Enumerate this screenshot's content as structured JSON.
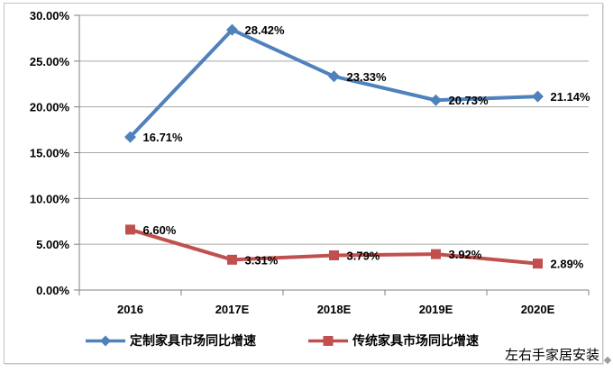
{
  "watermark": "左右手家居安装",
  "chart_data": {
    "type": "line",
    "title": "",
    "xlabel": "",
    "ylabel": "",
    "categories": [
      "2016",
      "2017E",
      "2018E",
      "2019E",
      "2020E"
    ],
    "series": [
      {
        "name": "定制家具市场同比增速",
        "color": "#4f81bd",
        "marker": "diamond",
        "values": [
          16.71,
          28.42,
          23.33,
          20.73,
          21.14
        ],
        "labels": [
          "16.71%",
          "28.42%",
          "23.33%",
          "20.73%",
          "21.14%"
        ]
      },
      {
        "name": "传统家具市场同比增速",
        "color": "#c0504d",
        "marker": "square",
        "values": [
          6.6,
          3.31,
          3.79,
          3.92,
          2.89
        ],
        "labels": [
          "6.60%",
          "3.31%",
          "3.79%",
          "3.92%",
          "2.89%"
        ]
      }
    ],
    "ylim": [
      0,
      30
    ],
    "yticks": [
      0,
      5,
      10,
      15,
      20,
      25,
      30
    ],
    "ytick_labels": [
      "0.00%",
      "5.00%",
      "10.00%",
      "15.00%",
      "20.00%",
      "25.00%",
      "30.00%"
    ],
    "grid": true,
    "legend_position": "bottom",
    "grid_color": "#a6a6a6",
    "axis_color": "#808080",
    "label_color": "#000000"
  }
}
